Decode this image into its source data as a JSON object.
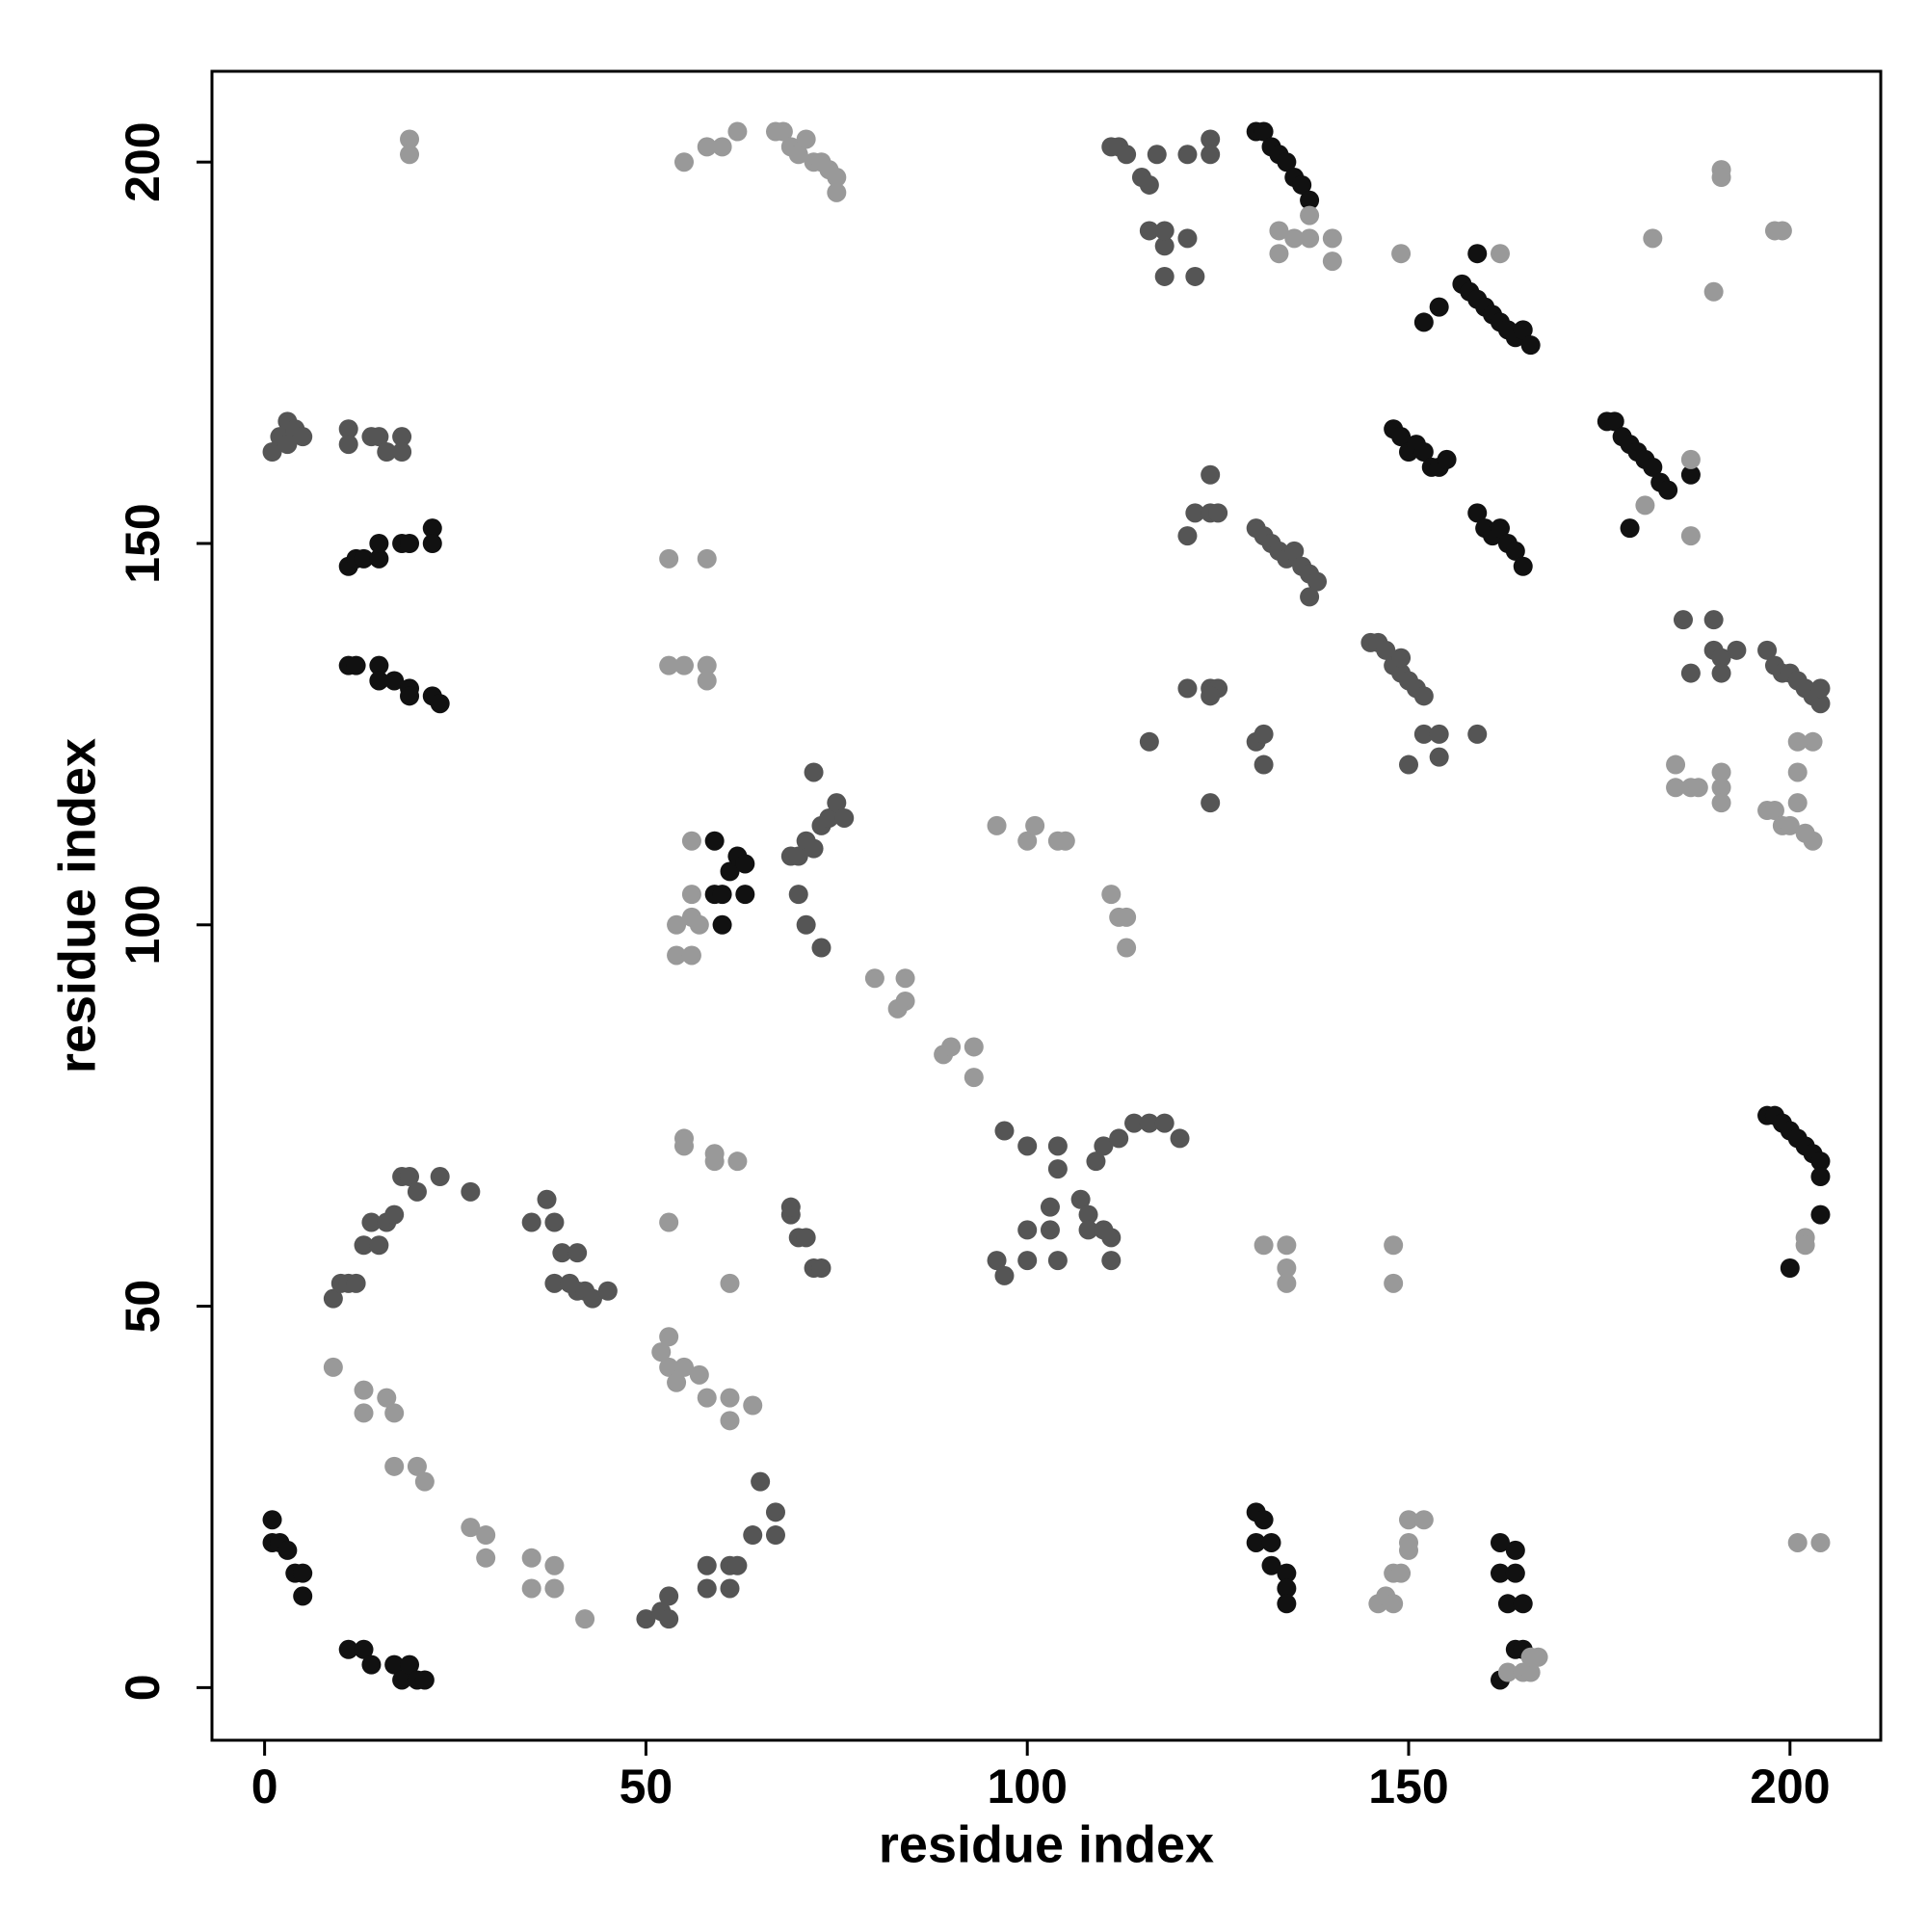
{
  "chart_data": {
    "type": "scatter",
    "xlabel": "residue index",
    "ylabel": "residue index",
    "xlim": [
      -6.9,
      211.9
    ],
    "ylim": [
      -6.9,
      211.9
    ],
    "xticks": [
      0,
      50,
      100,
      150,
      200
    ],
    "yticks": [
      0,
      50,
      100,
      150,
      200
    ],
    "series": [
      {
        "color": "#111111",
        "x": [
          1,
          1,
          2,
          3,
          4,
          5,
          5,
          11,
          13,
          14,
          17,
          18,
          19,
          20,
          21,
          11,
          12,
          13,
          15,
          15,
          18,
          19,
          22,
          22,
          11,
          12,
          15,
          15,
          17,
          19,
          19,
          22,
          23,
          59,
          60,
          60,
          61,
          59,
          62,
          63,
          63,
          130,
          131,
          132,
          133,
          134,
          135,
          136,
          137,
          157,
          158,
          159,
          160,
          161,
          162,
          163,
          164,
          165,
          166,
          159,
          154,
          152,
          148,
          149,
          150,
          151,
          152,
          153,
          154,
          155,
          159,
          160,
          161,
          162,
          163,
          164,
          165,
          176,
          177,
          178,
          179,
          180,
          181,
          182,
          183,
          184,
          187,
          179,
          197,
          198,
          199,
          200,
          201,
          202,
          203,
          204,
          204,
          200,
          204,
          130,
          131,
          130,
          132,
          132,
          134,
          134,
          134,
          162,
          162,
          164,
          164,
          163,
          165,
          164,
          165,
          162
        ],
        "values": [
          22,
          19,
          19,
          18,
          15,
          15,
          12,
          5,
          5,
          3,
          3,
          1,
          3,
          1,
          1,
          147,
          148,
          148,
          148,
          150,
          150,
          150,
          152,
          150,
          134,
          134,
          134,
          132,
          132,
          131,
          130,
          130,
          129,
          104,
          104,
          100,
          107,
          111,
          109,
          104,
          108,
          204,
          204,
          202,
          201,
          200,
          198,
          197,
          195,
          184,
          183,
          182,
          181,
          180,
          179,
          178,
          177,
          178,
          176,
          188,
          181,
          179,
          165,
          164,
          162,
          163,
          162,
          160,
          160,
          161,
          154,
          152,
          151,
          152,
          150,
          149,
          147,
          166,
          166,
          164,
          163,
          162,
          161,
          160,
          158,
          157,
          159,
          152,
          75,
          75,
          74,
          73,
          72,
          71,
          70,
          69,
          67,
          55,
          62,
          23,
          22,
          19,
          19,
          16,
          15,
          13,
          11,
          19,
          15,
          18,
          15,
          11,
          11,
          5,
          5,
          1
        ]
      },
      {
        "color": "#555555",
        "x": [
          9,
          10,
          11,
          12,
          13,
          14,
          15,
          16,
          17,
          18,
          19,
          20,
          23,
          27,
          35,
          37,
          38,
          39,
          41,
          38,
          40,
          41,
          42,
          43,
          45,
          50,
          52,
          53,
          53,
          58,
          58,
          61,
          61,
          62,
          65,
          64,
          67,
          67,
          69,
          69,
          70,
          71,
          72,
          73,
          69,
          70,
          71,
          72,
          73,
          74,
          75,
          76,
          72,
          70,
          71,
          73,
          96,
          97,
          100,
          100,
          103,
          103,
          104,
          107,
          108,
          108,
          110,
          111,
          111,
          97,
          100,
          104,
          109,
          110,
          112,
          114,
          116,
          118,
          120,
          104,
          111,
          112,
          113,
          115,
          116,
          117,
          116,
          118,
          118,
          121,
          118,
          122,
          121,
          124,
          124,
          121,
          122,
          124,
          125,
          124,
          130,
          131,
          132,
          133,
          134,
          135,
          136,
          137,
          138,
          137,
          121,
          124,
          125,
          124,
          130,
          131,
          131,
          116,
          124,
          145,
          146,
          147,
          148,
          149,
          150,
          151,
          152,
          149,
          152,
          154,
          150,
          154,
          159,
          186,
          187,
          190,
          190,
          191,
          191,
          193,
          197,
          198,
          199,
          200,
          201,
          202,
          203,
          204,
          204,
          1,
          2,
          3,
          4,
          5,
          11,
          11,
          14,
          15,
          16,
          18,
          18,
          3
        ],
        "values": [
          51,
          53,
          53,
          53,
          58,
          61,
          58,
          61,
          62,
          67,
          67,
          65,
          67,
          65,
          61,
          64,
          61,
          57,
          57,
          53,
          53,
          52,
          52,
          51,
          52,
          9,
          10,
          12,
          9,
          13,
          16,
          13,
          16,
          16,
          27,
          20,
          20,
          23,
          62,
          63,
          59,
          59,
          55,
          55,
          109,
          109,
          111,
          110,
          113,
          114,
          116,
          114,
          120,
          104,
          100,
          97,
          56,
          54,
          56,
          60,
          63,
          60,
          56,
          64,
          62,
          60,
          60,
          59,
          56,
          73,
          71,
          71,
          69,
          71,
          72,
          74,
          74,
          74,
          72,
          68,
          202,
          202,
          201,
          198,
          197,
          201,
          191,
          189,
          191,
          190,
          185,
          185,
          201,
          203,
          201,
          151,
          154,
          154,
          154,
          159,
          152,
          151,
          150,
          149,
          148,
          149,
          147,
          146,
          145,
          143,
          131,
          131,
          131,
          130,
          124,
          125,
          121,
          124,
          116,
          137,
          137,
          136,
          134,
          133,
          132,
          131,
          130,
          135,
          125,
          125,
          121,
          122,
          125,
          140,
          133,
          140,
          136,
          135,
          133,
          136,
          136,
          134,
          133,
          133,
          132,
          131,
          130,
          129,
          131,
          162,
          164,
          166,
          165,
          164,
          165,
          163,
          164,
          164,
          162,
          164,
          162,
          163
        ]
      },
      {
        "color": "#999999",
        "x": [
          9,
          13,
          13,
          16,
          17,
          17,
          20,
          21,
          27,
          29,
          29,
          35,
          35,
          38,
          38,
          42,
          53,
          52,
          53,
          54,
          55,
          57,
          58,
          61,
          61,
          64,
          80,
          84,
          84,
          83,
          89,
          90,
          93,
          93,
          96,
          100,
          101,
          104,
          105,
          111,
          112,
          113,
          113,
          19,
          19,
          55,
          58,
          60,
          62,
          67,
          68,
          69,
          70,
          71,
          72,
          73,
          74,
          75,
          75,
          133,
          135,
          137,
          140,
          137,
          140,
          133,
          149,
          162,
          185,
          185,
          187,
          188,
          191,
          191,
          191,
          197,
          198,
          199,
          200,
          201,
          202,
          203,
          201,
          203,
          201,
          182,
          190,
          191,
          191,
          198,
          199,
          187,
          181,
          187,
          131,
          134,
          134,
          134,
          148,
          148,
          201,
          204,
          202,
          202,
          53,
          58,
          53,
          55,
          58,
          58,
          53,
          55,
          55,
          59,
          59,
          62,
          61,
          54,
          56,
          54,
          56,
          56,
          57,
          56,
          146,
          147,
          148,
          148,
          149,
          150,
          150,
          150,
          152,
          163,
          165,
          166,
          166,
          167
        ],
        "values": [
          42,
          39,
          36,
          38,
          36,
          29,
          29,
          27,
          21,
          20,
          17,
          17,
          13,
          16,
          13,
          9,
          46,
          44,
          42,
          40,
          42,
          41,
          38,
          38,
          35,
          37,
          93,
          93,
          90,
          89,
          83,
          84,
          84,
          80,
          113,
          111,
          113,
          111,
          111,
          104,
          101,
          101,
          97,
          203,
          201,
          200,
          202,
          202,
          204,
          204,
          204,
          202,
          201,
          203,
          200,
          200,
          199,
          198,
          196,
          191,
          190,
          190,
          190,
          193,
          187,
          188,
          188,
          188,
          121,
          118,
          118,
          118,
          120,
          118,
          116,
          115,
          115,
          113,
          113,
          116,
          112,
          111,
          120,
          124,
          124,
          190,
          183,
          199,
          198,
          191,
          191,
          161,
          155,
          151,
          58,
          58,
          55,
          53,
          58,
          53,
          19,
          19,
          59,
          58,
          148,
          148,
          134,
          134,
          134,
          132,
          61,
          72,
          71,
          70,
          69,
          69,
          53,
          96,
          96,
          100,
          104,
          101,
          100,
          111,
          11,
          12,
          11,
          15,
          15,
          19,
          18,
          22,
          22,
          2,
          2,
          2,
          4,
          4
        ]
      }
    ]
  }
}
